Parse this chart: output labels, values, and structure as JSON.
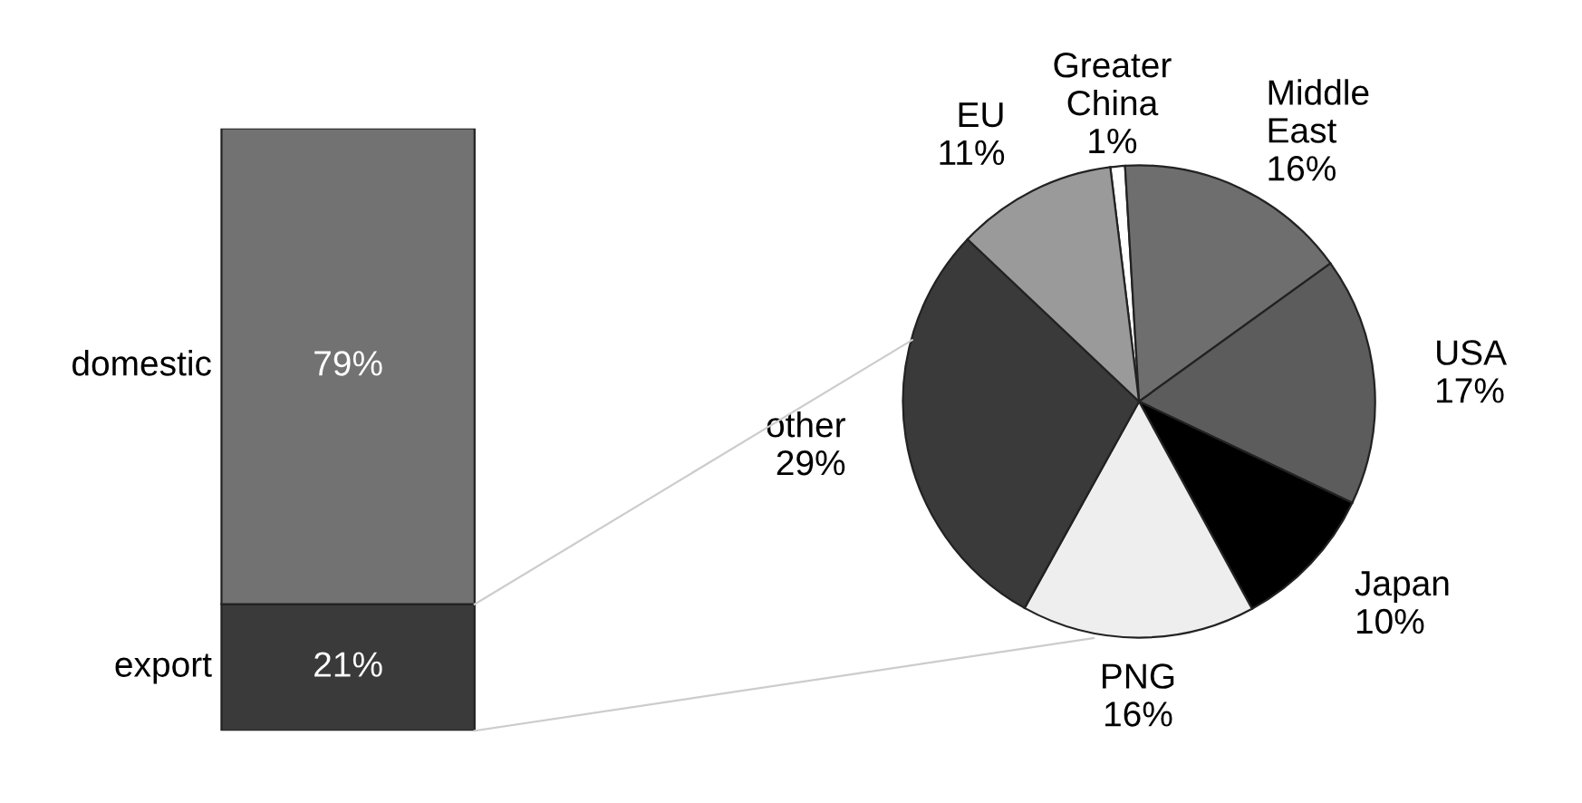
{
  "chart_data": [
    {
      "type": "bar",
      "stacked": true,
      "categories": [
        null
      ],
      "series": [
        {
          "name": "export",
          "color": "#3a3a3a",
          "values": [
            21
          ],
          "value_labels": [
            "21%"
          ]
        },
        {
          "name": "domestic",
          "color": "#727272",
          "values": [
            79
          ],
          "value_labels": [
            "79%"
          ]
        }
      ]
    },
    {
      "type": "pie",
      "categories": [
        "Greater\nChina",
        "Middle\nEast",
        "USA",
        "Japan",
        "PNG",
        "other",
        "EU"
      ],
      "values": [
        1,
        16,
        17,
        10,
        16,
        29,
        11
      ],
      "value_labels": [
        "1%",
        "16%",
        "17%",
        "10%",
        "16%",
        "29%",
        "11%"
      ],
      "colors": [
        "#ffffff",
        "#6e6e6e",
        "#5c5c5c",
        "#000000",
        "#eeeeee",
        "#3a3a3a",
        "#9a9a9a"
      ]
    }
  ]
}
